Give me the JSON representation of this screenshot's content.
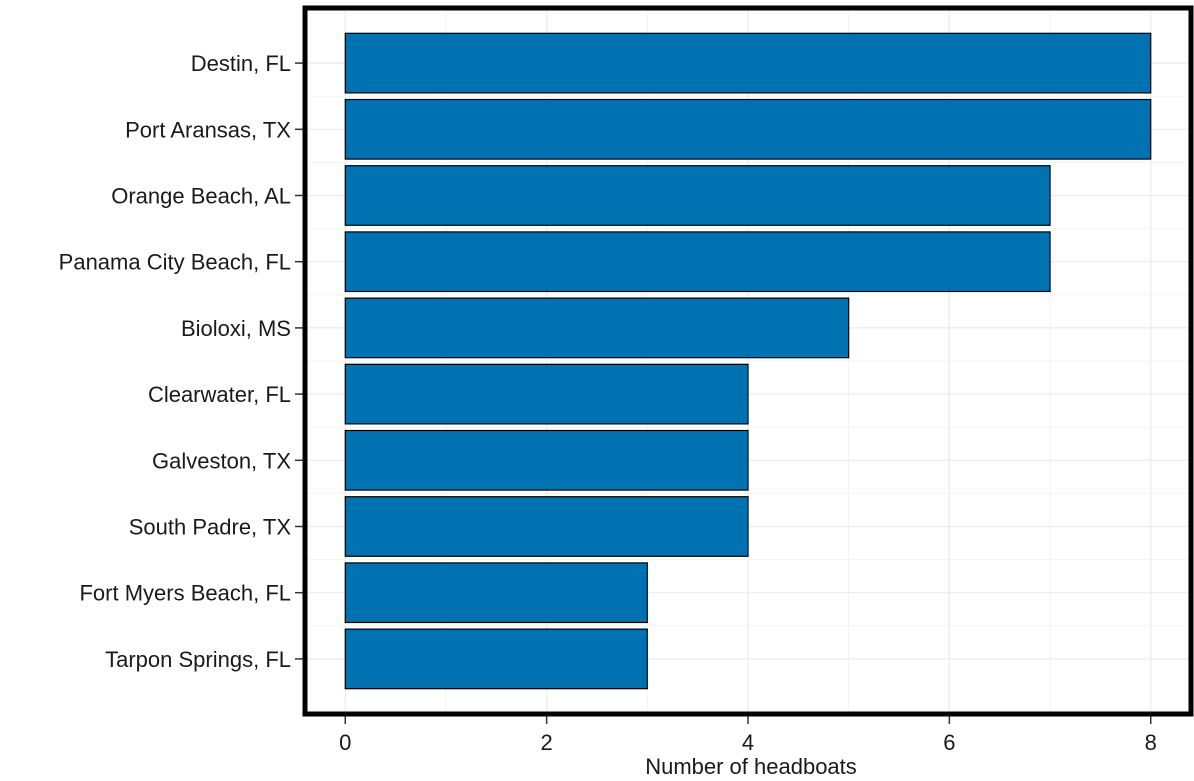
{
  "chart_data": {
    "type": "bar",
    "orientation": "horizontal",
    "title": "",
    "xlabel": "Number of headboats",
    "ylabel": "",
    "categories": [
      "Destin, FL",
      "Port Aransas, TX",
      "Orange Beach, AL",
      "Panama City Beach, FL",
      "Bioloxi, MS",
      "Clearwater, FL",
      "Galveston, TX",
      "South Padre, TX",
      "Fort Myers Beach, FL",
      "Tarpon Springs, FL"
    ],
    "values": [
      8,
      8,
      7,
      7,
      5,
      4,
      4,
      4,
      3,
      3
    ],
    "xlim": [
      -0.4,
      8.4
    ],
    "xticks": [
      0,
      2,
      4,
      6,
      8
    ],
    "xtick_labels": [
      "0",
      "2",
      "4",
      "6",
      "8"
    ],
    "grid": true,
    "bar_color": "#0072B2",
    "bar_edge_color": "#000000",
    "legend": "none"
  }
}
